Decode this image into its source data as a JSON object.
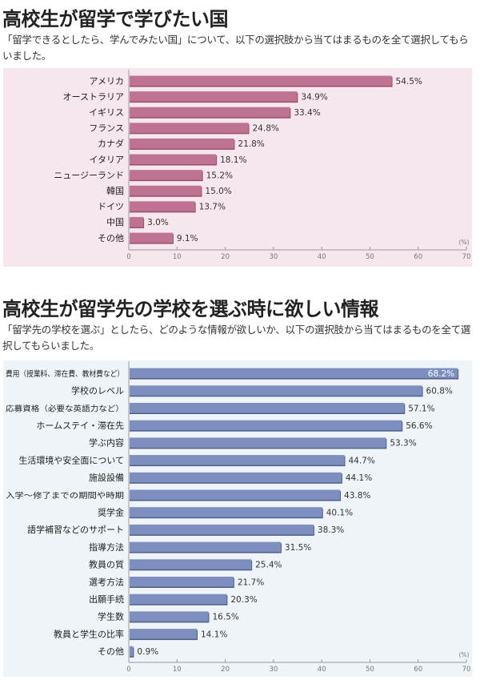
{
  "sections": [
    {
      "title": "高校生が留学で学びたい国",
      "description": "「留学できるとしたら、学んでみたい国」について、以下の選択肢から当てはまるものを全て選択してもらいました。"
    },
    {
      "title": "高校生が留学先の学校を選ぶ時に欲しい情報",
      "description": "「留学先の学校を選ぶ」としたら、どのような情報が欲しいか、以下の選択肢から当てはまるものを全て選択してもらいました。"
    }
  ],
  "chart_data": [
    {
      "type": "bar",
      "orientation": "horizontal",
      "title": "高校生が留学で学びたい国",
      "categories": [
        "アメリカ",
        "オーストラリア",
        "イギリス",
        "フランス",
        "カナダ",
        "イタリア",
        "ニュージーランド",
        "韓国",
        "ドイツ",
        "中国",
        "その他"
      ],
      "values": [
        54.5,
        34.9,
        33.4,
        24.8,
        21.8,
        18.1,
        15.2,
        15.0,
        13.7,
        3.0,
        9.1
      ],
      "labels": [
        "54.5%",
        "34.9%",
        "33.4%",
        "24.8%",
        "21.8%",
        "18.1%",
        "15.2%",
        "15.0%",
        "13.7%",
        "3.0%",
        "9.1%"
      ],
      "xlim": [
        0,
        70
      ],
      "xticks": [
        "0",
        "10",
        "20",
        "30",
        "40",
        "50",
        "60",
        "70"
      ],
      "unit_label": "(%)",
      "grid": false,
      "colors": {
        "bar": "#bf7393",
        "bar_edge": "#9c4f6d",
        "background": "#f6e6ee"
      }
    },
    {
      "type": "bar",
      "orientation": "horizontal",
      "title": "高校生が留学先の学校を選ぶ時に欲しい情報",
      "categories": [
        "費用（授業料、滞在費、教材費など）",
        "学校のレベル",
        "応募資格（必要な英語力など）",
        "ホームステイ・滞在先",
        "学ぶ内容",
        "生活環境や安全面について",
        "施設設備",
        "入学～修了までの期間や時期",
        "奨学金",
        "語学補習などのサポート",
        "指導方法",
        "教員の質",
        "選考方法",
        "出願手続",
        "学生数",
        "教員と学生の比率",
        "その他"
      ],
      "values": [
        68.2,
        60.8,
        57.1,
        56.6,
        53.3,
        44.7,
        44.1,
        43.8,
        40.1,
        38.3,
        31.5,
        25.4,
        21.7,
        20.3,
        16.5,
        14.1,
        0.9
      ],
      "labels": [
        "68.2%",
        "60.8%",
        "57.1%",
        "56.6%",
        "53.3%",
        "44.7%",
        "44.1%",
        "43.8%",
        "40.1%",
        "38.3%",
        "31.5%",
        "25.4%",
        "21.7%",
        "20.3%",
        "16.5%",
        "14.1%",
        "0.9%"
      ],
      "xlim": [
        0,
        70
      ],
      "xticks": [
        "0",
        "10",
        "20",
        "30",
        "40",
        "50",
        "60",
        "70"
      ],
      "unit_label": "(%)",
      "grid": false,
      "colors": {
        "bar": "#7d8fbf",
        "bar_edge": "#4f5f8c",
        "background": "#eef4f8"
      }
    }
  ]
}
